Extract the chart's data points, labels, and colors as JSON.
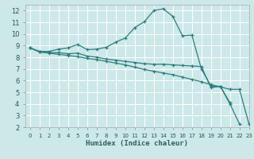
{
  "xlabel": "Humidex (Indice chaleur)",
  "bg_color": "#cce8e8",
  "grid_color": "#ffffff",
  "line_color": "#2d7d7d",
  "xlim": [
    -0.5,
    23
  ],
  "ylim": [
    2,
    12.5
  ],
  "xticks": [
    0,
    1,
    2,
    3,
    4,
    5,
    6,
    7,
    8,
    9,
    10,
    11,
    12,
    13,
    14,
    15,
    16,
    17,
    18,
    19,
    20,
    21,
    22,
    23
  ],
  "yticks": [
    2,
    3,
    4,
    5,
    6,
    7,
    8,
    9,
    10,
    11,
    12
  ],
  "series": [
    {
      "x": [
        0,
        1,
        2,
        3,
        4,
        5,
        6,
        7,
        8,
        9,
        10,
        11,
        12,
        13,
        14,
        15,
        16,
        17,
        18,
        19,
        20,
        21
      ],
      "y": [
        8.8,
        8.5,
        8.5,
        8.7,
        8.8,
        9.1,
        8.65,
        8.7,
        8.85,
        9.3,
        9.65,
        10.55,
        11.05,
        12.0,
        12.15,
        11.5,
        9.85,
        9.9,
        7.0,
        5.55,
        5.5,
        4.1
      ]
    },
    {
      "x": [
        0,
        1,
        2,
        3,
        4,
        5,
        6,
        7,
        8,
        9,
        10,
        11,
        12,
        13,
        14,
        15,
        16,
        17,
        18,
        19,
        20,
        21,
        22
      ],
      "y": [
        8.8,
        8.45,
        8.4,
        8.4,
        8.3,
        8.35,
        8.1,
        8.0,
        7.85,
        7.75,
        7.65,
        7.55,
        7.45,
        7.4,
        7.4,
        7.35,
        7.3,
        7.25,
        7.2,
        5.4,
        5.5,
        4.0,
        2.3
      ]
    },
    {
      "x": [
        0,
        1,
        2,
        3,
        4,
        5,
        6,
        7,
        8,
        9,
        10,
        11,
        12,
        13,
        14,
        15,
        16,
        17,
        18,
        19,
        20,
        21,
        22,
        23
      ],
      "y": [
        8.8,
        8.45,
        8.35,
        8.25,
        8.15,
        8.05,
        7.9,
        7.8,
        7.65,
        7.5,
        7.35,
        7.15,
        6.95,
        6.8,
        6.65,
        6.5,
        6.3,
        6.1,
        5.9,
        5.65,
        5.45,
        5.25,
        5.25,
        2.3
      ]
    }
  ]
}
